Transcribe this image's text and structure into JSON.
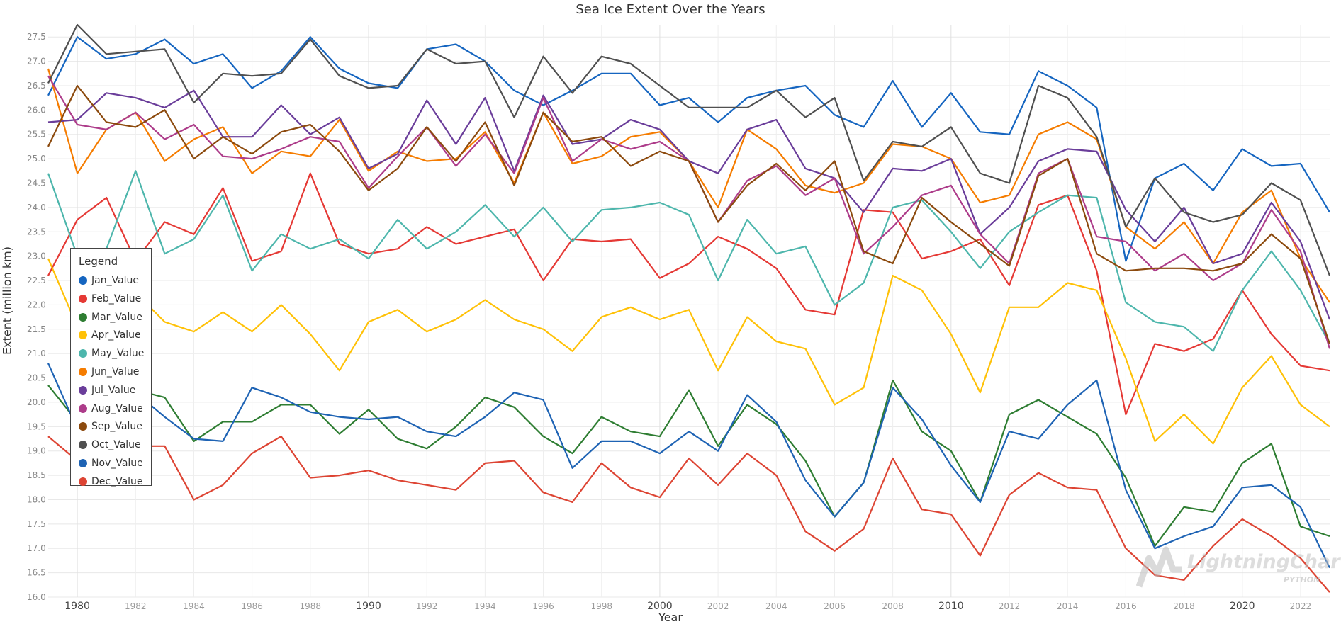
{
  "chart_data": {
    "type": "line",
    "title": "Sea Ice Extent Over the Years",
    "xlabel": "Year",
    "ylabel": "Extent (million km)",
    "xlim": [
      1979,
      2023
    ],
    "ylim": [
      16.0,
      27.75
    ],
    "grid": true,
    "legend_position": "left",
    "legend_title": "Legend",
    "y_ticks": [
      "16.0",
      "16.5",
      "17.0",
      "17.5",
      "18.0",
      "18.5",
      "19.0",
      "19.5",
      "20.0",
      "20.5",
      "21.0",
      "21.5",
      "22.0",
      "22.5",
      "23.0",
      "23.5",
      "24.0",
      "24.5",
      "25.0",
      "25.5",
      "26.0",
      "26.5",
      "27.0",
      "27.5"
    ],
    "x_ticks": [
      {
        "value": 1980,
        "label": "1980",
        "major": true
      },
      {
        "value": 1982,
        "label": "1982",
        "major": false
      },
      {
        "value": 1984,
        "label": "1984",
        "major": false
      },
      {
        "value": 1986,
        "label": "1986",
        "major": false
      },
      {
        "value": 1988,
        "label": "1988",
        "major": false
      },
      {
        "value": 1990,
        "label": "1990",
        "major": true
      },
      {
        "value": 1992,
        "label": "1992",
        "major": false
      },
      {
        "value": 1994,
        "label": "1994",
        "major": false
      },
      {
        "value": 1996,
        "label": "1996",
        "major": false
      },
      {
        "value": 1998,
        "label": "1998",
        "major": false
      },
      {
        "value": 2000,
        "label": "2000",
        "major": true
      },
      {
        "value": 2002,
        "label": "2002",
        "major": false
      },
      {
        "value": 2004,
        "label": "2004",
        "major": false
      },
      {
        "value": 2006,
        "label": "2006",
        "major": false
      },
      {
        "value": 2008,
        "label": "2008",
        "major": false
      },
      {
        "value": 2010,
        "label": "2010",
        "major": true
      },
      {
        "value": 2012,
        "label": "2012",
        "major": false
      },
      {
        "value": 2014,
        "label": "2014",
        "major": false
      },
      {
        "value": 2016,
        "label": "2016",
        "major": false
      },
      {
        "value": 2018,
        "label": "2018",
        "major": false
      },
      {
        "value": 2020,
        "label": "2020",
        "major": true
      },
      {
        "value": 2022,
        "label": "2022",
        "major": false
      }
    ],
    "x_start": 1979,
    "series": [
      {
        "name": "Jan_Value",
        "color": "#1565c0",
        "values": [
          26.3,
          27.5,
          27.05,
          27.15,
          27.45,
          26.95,
          27.15,
          26.45,
          26.8,
          27.5,
          26.85,
          26.55,
          26.45,
          27.25,
          27.35,
          27.0,
          26.4,
          26.1,
          26.4,
          26.75,
          26.75,
          26.1,
          26.25,
          25.75,
          26.25,
          26.4,
          26.5,
          25.9,
          25.65,
          26.6,
          25.65,
          26.35,
          25.55,
          25.5,
          26.8,
          26.5,
          26.05,
          22.9,
          24.6,
          24.9,
          24.35,
          25.2,
          24.85,
          24.9,
          23.9
        ]
      },
      {
        "name": "Feb_Value",
        "color": "#e53935",
        "values": [
          22.6,
          23.75,
          24.2,
          22.9,
          23.7,
          23.45,
          24.4,
          22.9,
          23.1,
          24.7,
          23.25,
          23.05,
          23.15,
          23.6,
          23.25,
          23.4,
          23.55,
          22.5,
          23.35,
          23.3,
          23.35,
          22.55,
          22.85,
          23.4,
          23.15,
          22.75,
          21.9,
          21.8,
          23.95,
          23.9,
          22.95,
          23.1,
          23.35,
          22.4,
          24.05,
          24.25,
          22.7,
          19.75,
          21.2,
          21.05,
          21.3,
          22.3,
          21.4,
          20.75,
          20.65
        ]
      },
      {
        "name": "Mar_Value",
        "color": "#2e7d32",
        "values": [
          20.35,
          19.6,
          19.7,
          20.25,
          20.1,
          19.2,
          19.6,
          19.6,
          19.95,
          19.95,
          19.35,
          19.85,
          19.25,
          19.05,
          19.5,
          20.1,
          19.9,
          19.3,
          18.95,
          19.7,
          19.4,
          19.3,
          20.25,
          19.1,
          19.95,
          19.55,
          18.8,
          17.65,
          18.35,
          20.45,
          19.4,
          19.0,
          17.95,
          19.75,
          20.05,
          19.7,
          19.35,
          18.45,
          17.05,
          17.85,
          17.75,
          18.75,
          19.15,
          17.45,
          17.25
        ]
      },
      {
        "name": "Apr_Value",
        "color": "#ffc107",
        "values": [
          22.95,
          21.55,
          22.05,
          22.25,
          21.65,
          21.45,
          21.85,
          21.45,
          22.0,
          21.4,
          20.65,
          21.65,
          21.9,
          21.45,
          21.7,
          22.1,
          21.7,
          21.5,
          21.05,
          21.75,
          21.95,
          21.7,
          21.9,
          20.65,
          21.75,
          21.25,
          21.1,
          19.95,
          20.3,
          22.6,
          22.3,
          21.4,
          20.2,
          21.95,
          21.95,
          22.45,
          22.3,
          20.9,
          19.2,
          19.75,
          19.15,
          20.3,
          20.95,
          19.95,
          19.5
        ]
      },
      {
        "name": "May_Value",
        "color": "#4db6ac",
        "values": [
          24.7,
          23.0,
          23.15,
          24.75,
          23.05,
          23.35,
          24.25,
          22.7,
          23.45,
          23.15,
          23.35,
          22.95,
          23.75,
          23.15,
          23.5,
          24.05,
          23.4,
          24.0,
          23.3,
          23.95,
          24.0,
          24.1,
          23.85,
          22.5,
          23.75,
          23.05,
          23.2,
          22.0,
          22.45,
          24.0,
          24.15,
          23.5,
          22.75,
          23.5,
          23.9,
          24.25,
          24.2,
          22.05,
          21.65,
          21.55,
          21.05,
          22.3,
          23.1,
          22.3,
          21.2
        ]
      },
      {
        "name": "Jun_Value",
        "color": "#f57c00",
        "values": [
          26.85,
          24.7,
          25.6,
          25.95,
          24.95,
          25.4,
          25.65,
          24.7,
          25.15,
          25.05,
          25.8,
          24.75,
          25.15,
          24.95,
          25.0,
          25.55,
          24.5,
          25.95,
          24.9,
          25.05,
          25.45,
          25.55,
          24.95,
          24.0,
          25.6,
          25.2,
          24.45,
          24.3,
          24.5,
          25.3,
          25.25,
          25.0,
          24.1,
          24.25,
          25.5,
          25.75,
          25.4,
          23.6,
          23.15,
          23.7,
          22.85,
          23.9,
          24.35,
          22.95,
          22.05
        ]
      },
      {
        "name": "Jul_Value",
        "color": "#6a3d9a",
        "values": [
          25.75,
          25.8,
          26.35,
          26.25,
          26.05,
          26.4,
          25.45,
          25.45,
          26.1,
          25.5,
          25.85,
          24.8,
          25.1,
          26.2,
          25.3,
          26.25,
          24.75,
          26.3,
          25.3,
          25.4,
          25.8,
          25.6,
          24.95,
          24.7,
          25.6,
          25.8,
          24.8,
          24.6,
          23.9,
          24.8,
          24.75,
          25.0,
          23.45,
          24.0,
          24.95,
          25.2,
          25.15,
          23.95,
          23.3,
          24.0,
          22.85,
          23.05,
          24.1,
          23.3,
          21.7
        ]
      },
      {
        "name": "Aug_Value",
        "color": "#ad3c8a",
        "values": [
          26.7,
          25.7,
          25.6,
          25.95,
          25.4,
          25.7,
          25.05,
          25.0,
          25.2,
          25.45,
          25.35,
          24.4,
          25.05,
          25.65,
          24.85,
          25.5,
          24.7,
          26.25,
          24.95,
          25.4,
          25.2,
          25.35,
          24.95,
          23.7,
          24.55,
          24.85,
          24.25,
          24.6,
          23.05,
          23.6,
          24.25,
          24.45,
          23.45,
          22.85,
          24.7,
          25.0,
          23.4,
          23.3,
          22.7,
          23.05,
          22.5,
          22.85,
          23.95,
          23.1,
          21.1
        ]
      },
      {
        "name": "Sep_Value",
        "color": "#8c4a0e",
        "values": [
          25.25,
          26.5,
          25.75,
          25.65,
          26.0,
          25.0,
          25.45,
          25.1,
          25.55,
          25.7,
          25.15,
          24.35,
          24.8,
          25.65,
          24.95,
          25.75,
          24.45,
          25.95,
          25.35,
          25.45,
          24.85,
          25.15,
          24.95,
          23.7,
          24.45,
          24.9,
          24.35,
          24.95,
          23.1,
          22.85,
          24.2,
          23.7,
          23.25,
          22.8,
          24.65,
          25.0,
          23.05,
          22.7,
          22.75,
          22.75,
          22.7,
          22.85,
          23.45,
          22.95,
          21.2
        ]
      },
      {
        "name": "Oct_Value",
        "color": "#505050",
        "values": [
          26.55,
          27.75,
          27.15,
          27.2,
          27.25,
          26.15,
          26.75,
          26.7,
          26.75,
          27.45,
          26.7,
          26.45,
          26.5,
          27.25,
          26.95,
          27.0,
          25.85,
          27.1,
          26.35,
          27.1,
          26.95,
          26.5,
          26.05,
          26.05,
          26.05,
          26.4,
          25.85,
          26.25,
          24.55,
          25.35,
          25.25,
          25.65,
          24.7,
          24.5,
          26.5,
          26.25,
          25.45,
          23.6,
          24.6,
          23.9,
          23.7,
          23.85,
          24.5,
          24.15,
          22.6
        ]
      },
      {
        "name": "Nov_Value",
        "color": "#1e63b4",
        "values": [
          20.8,
          19.45,
          20.3,
          20.2,
          19.7,
          19.25,
          19.2,
          20.3,
          20.1,
          19.8,
          19.7,
          19.65,
          19.7,
          19.4,
          19.3,
          19.7,
          20.2,
          20.05,
          18.65,
          19.2,
          19.2,
          18.95,
          19.4,
          19.0,
          20.15,
          19.6,
          18.4,
          17.65,
          18.35,
          20.3,
          19.65,
          18.7,
          17.95,
          19.4,
          19.25,
          19.95,
          20.45,
          18.2,
          17.0,
          17.25,
          17.45,
          18.25,
          18.3,
          17.85,
          16.6
        ]
      },
      {
        "name": "Dec_Value",
        "color": "#dd4433",
        "values": [
          19.3,
          18.8,
          19.05,
          19.1,
          19.1,
          18.0,
          18.3,
          18.95,
          19.3,
          18.45,
          18.5,
          18.6,
          18.4,
          18.3,
          18.2,
          18.75,
          18.8,
          18.15,
          17.95,
          18.75,
          18.25,
          18.05,
          18.85,
          18.3,
          18.95,
          18.5,
          17.35,
          16.95,
          17.4,
          18.85,
          17.8,
          17.7,
          16.85,
          18.1,
          18.55,
          18.25,
          18.2,
          17.0,
          16.45,
          16.35,
          17.05,
          17.6,
          17.25,
          16.8,
          16.1
        ]
      }
    ]
  },
  "logo": {
    "text": "LightningChart",
    "sub": "PYTHON"
  }
}
